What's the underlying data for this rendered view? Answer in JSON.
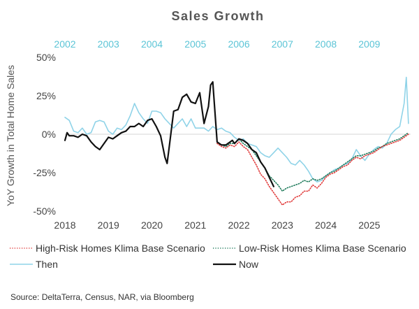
{
  "chart_data": {
    "type": "line",
    "title": "Sales Growth",
    "ylabel": "YoY Growth in Total Home Sales",
    "xlabel": "",
    "ylim": [
      -50,
      50
    ],
    "xlim": [
      2018.0,
      2025.95
    ],
    "yticks": [
      50,
      25,
      0,
      -25,
      -50
    ],
    "ytick_labels": [
      "50%",
      "25%",
      "0%",
      "-25%",
      "-50%"
    ],
    "xticks": [
      2018,
      2019,
      2020,
      2021,
      2022,
      2023,
      2024,
      2025
    ],
    "xtick_labels": [
      "2018",
      "2019",
      "2020",
      "2021",
      "2022",
      "2023",
      "2024",
      "2025"
    ],
    "top_axis_labels": [
      "2002",
      "2003",
      "2004",
      "2005",
      "2006",
      "2007",
      "2008",
      "2009"
    ],
    "grid": "horizontal zero line only",
    "legend_position": "bottom",
    "series": [
      {
        "name": "High-Risk Homes Klima Base Scenario",
        "color": "#e03a3a",
        "style": "dotted",
        "x": [
          2021.5,
          2021.6,
          2021.7,
          2021.8,
          2021.9,
          2022.0,
          2022.1,
          2022.2,
          2022.3,
          2022.4,
          2022.5,
          2022.6,
          2022.7,
          2022.8,
          2022.9,
          2023.0,
          2023.1,
          2023.2,
          2023.3,
          2023.4,
          2023.5,
          2023.6,
          2023.7,
          2023.8,
          2023.9,
          2024.0,
          2024.1,
          2024.2,
          2024.3,
          2024.4,
          2024.5,
          2024.6,
          2024.7,
          2024.8,
          2024.9,
          2025.0,
          2025.1,
          2025.2,
          2025.3,
          2025.4,
          2025.5,
          2025.6,
          2025.7,
          2025.8,
          2025.9
        ],
        "values": [
          -6,
          -8,
          -9,
          -7,
          -8,
          -5,
          -8,
          -10,
          -15,
          -20,
          -26,
          -29,
          -34,
          -38,
          -42,
          -46,
          -44,
          -44,
          -41,
          -40,
          -37,
          -37,
          -33,
          -35,
          -32,
          -28,
          -26,
          -25,
          -23,
          -21,
          -20,
          -17,
          -15,
          -16,
          -14,
          -13,
          -12,
          -10,
          -8,
          -7,
          -6,
          -5,
          -4,
          -2,
          0
        ]
      },
      {
        "name": "Low-Risk Homes Klima Base Scenario",
        "color": "#1e7a5a",
        "style": "dotted",
        "x": [
          2021.5,
          2021.6,
          2021.7,
          2021.8,
          2021.9,
          2022.0,
          2022.1,
          2022.2,
          2022.3,
          2022.4,
          2022.5,
          2022.6,
          2022.7,
          2022.8,
          2022.9,
          2023.0,
          2023.1,
          2023.2,
          2023.3,
          2023.4,
          2023.5,
          2023.6,
          2023.7,
          2023.8,
          2023.9,
          2024.0,
          2024.1,
          2024.2,
          2024.3,
          2024.4,
          2024.5,
          2024.6,
          2024.7,
          2024.8,
          2024.9,
          2025.0,
          2025.1,
          2025.2,
          2025.3,
          2025.4,
          2025.5,
          2025.6,
          2025.7,
          2025.8,
          2025.9
        ],
        "values": [
          -6,
          -7,
          -8,
          -6,
          -6,
          -3,
          -6,
          -8,
          -10,
          -14,
          -18,
          -22,
          -27,
          -30,
          -33,
          -37,
          -35,
          -34,
          -33,
          -32,
          -30,
          -31,
          -29,
          -30,
          -29,
          -27,
          -25,
          -24,
          -22,
          -20,
          -18,
          -16,
          -14,
          -14,
          -13,
          -12,
          -11,
          -9,
          -8,
          -6,
          -5,
          -4,
          -3,
          -1,
          1
        ]
      },
      {
        "name": "Then",
        "color": "#8fd3e8",
        "style": "solid",
        "x": [
          2018.0,
          2018.1,
          2018.2,
          2018.3,
          2018.4,
          2018.5,
          2018.6,
          2018.7,
          2018.8,
          2018.9,
          2019.0,
          2019.1,
          2019.2,
          2019.3,
          2019.4,
          2019.5,
          2019.6,
          2019.7,
          2019.8,
          2019.9,
          2020.0,
          2020.1,
          2020.2,
          2020.3,
          2020.4,
          2020.5,
          2020.6,
          2020.7,
          2020.8,
          2020.9,
          2021.0,
          2021.1,
          2021.2,
          2021.3,
          2021.4,
          2021.5,
          2021.6,
          2021.7,
          2021.8,
          2021.9,
          2022.0,
          2022.1,
          2022.2,
          2022.3,
          2022.4,
          2022.5,
          2022.6,
          2022.7,
          2022.8,
          2022.9,
          2023.0,
          2023.1,
          2023.2,
          2023.3,
          2023.4,
          2023.5,
          2023.6,
          2023.7,
          2023.8,
          2023.9,
          2024.0,
          2024.1,
          2024.2,
          2024.3,
          2024.4,
          2024.5,
          2024.6,
          2024.7,
          2024.8,
          2024.9,
          2025.0,
          2025.1,
          2025.2,
          2025.3,
          2025.4,
          2025.5,
          2025.6,
          2025.7,
          2025.8,
          2025.85,
          2025.9
        ],
        "values": [
          11,
          9,
          2,
          1,
          4,
          0,
          1,
          8,
          9,
          8,
          2,
          0,
          4,
          3,
          6,
          12,
          20,
          14,
          10,
          7,
          15,
          15,
          14,
          10,
          7,
          4,
          7,
          10,
          5,
          10,
          4,
          4,
          4,
          2,
          5,
          3,
          4,
          2,
          1,
          -2,
          -4,
          -3,
          -6,
          -7,
          -8,
          -12,
          -14,
          -15,
          -12,
          -9,
          -12,
          -15,
          -19,
          -20,
          -17,
          -20,
          -24,
          -29,
          -31,
          -30,
          -27,
          -25,
          -23,
          -22,
          -20,
          -19,
          -16,
          -10,
          -14,
          -17,
          -13,
          -10,
          -8,
          -9,
          -6,
          0,
          3,
          5,
          20,
          37,
          7
        ]
      },
      {
        "name": "Now",
        "color": "#111111",
        "style": "solid",
        "x": [
          2018.0,
          2018.05,
          2018.1,
          2018.2,
          2018.3,
          2018.4,
          2018.5,
          2018.6,
          2018.7,
          2018.8,
          2018.9,
          2019.0,
          2019.1,
          2019.2,
          2019.3,
          2019.4,
          2019.5,
          2019.6,
          2019.7,
          2019.8,
          2019.9,
          2020.0,
          2020.1,
          2020.2,
          2020.3,
          2020.35,
          2020.4,
          2020.5,
          2020.6,
          2020.7,
          2020.8,
          2020.9,
          2021.0,
          2021.1,
          2021.2,
          2021.3,
          2021.35,
          2021.4,
          2021.5,
          2021.6,
          2021.7,
          2021.8,
          2021.85,
          2021.9,
          2022.0,
          2022.1,
          2022.2,
          2022.3,
          2022.4,
          2022.5,
          2022.6,
          2022.7,
          2022.8
        ],
        "values": [
          -4,
          1,
          -1,
          -1,
          -2,
          0,
          -1,
          -5,
          -8,
          -10,
          -6,
          -2,
          -3,
          -1,
          1,
          2,
          5,
          5,
          7,
          5,
          9,
          10,
          5,
          -1,
          -15,
          -19,
          -8,
          15,
          16,
          24,
          26,
          21,
          20,
          27,
          7,
          18,
          32,
          34,
          -5,
          -7,
          -7,
          -5,
          -4,
          -6,
          -3,
          -4,
          -6,
          -10,
          -12,
          -18,
          -22,
          -28,
          -34
        ]
      }
    ]
  },
  "legend": [
    {
      "label": "High-Risk Homes Klima Base Scenario",
      "color": "#e03a3a",
      "style": "dotted"
    },
    {
      "label": "Low-Risk Homes Klima Base Scenario",
      "color": "#1e7a5a",
      "style": "dotted"
    },
    {
      "label": "Then",
      "color": "#8fd3e8",
      "style": "solid"
    },
    {
      "label": "Now",
      "color": "#111111",
      "style": "solid"
    }
  ],
  "source": "Source: DeltaTerra, Census, NAR, via Bloomberg"
}
